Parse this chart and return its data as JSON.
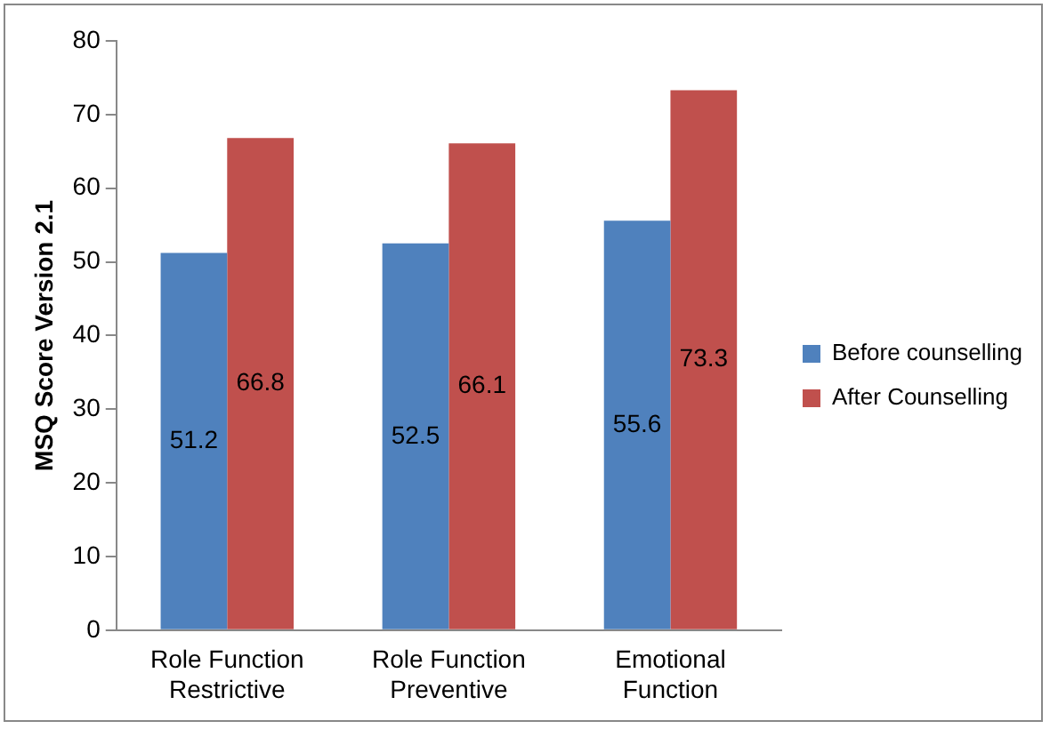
{
  "chart_data": {
    "type": "bar",
    "ylabel": "MSQ Score Version 2.1",
    "categories": [
      "Role Function Restrictive",
      "Role Function Preventive",
      "Emotional Function"
    ],
    "series": [
      {
        "name": "Before counselling",
        "color": "#4f81bd",
        "values": [
          51.2,
          52.5,
          55.6
        ]
      },
      {
        "name": "After Counselling",
        "color": "#c0504d",
        "values": [
          66.8,
          66.1,
          73.3
        ]
      }
    ],
    "ylim": [
      0,
      80
    ],
    "yticks": [
      0,
      10,
      20,
      30,
      40,
      50,
      60,
      70,
      80
    ],
    "grid": false,
    "legend": "right",
    "data_labels": true
  }
}
